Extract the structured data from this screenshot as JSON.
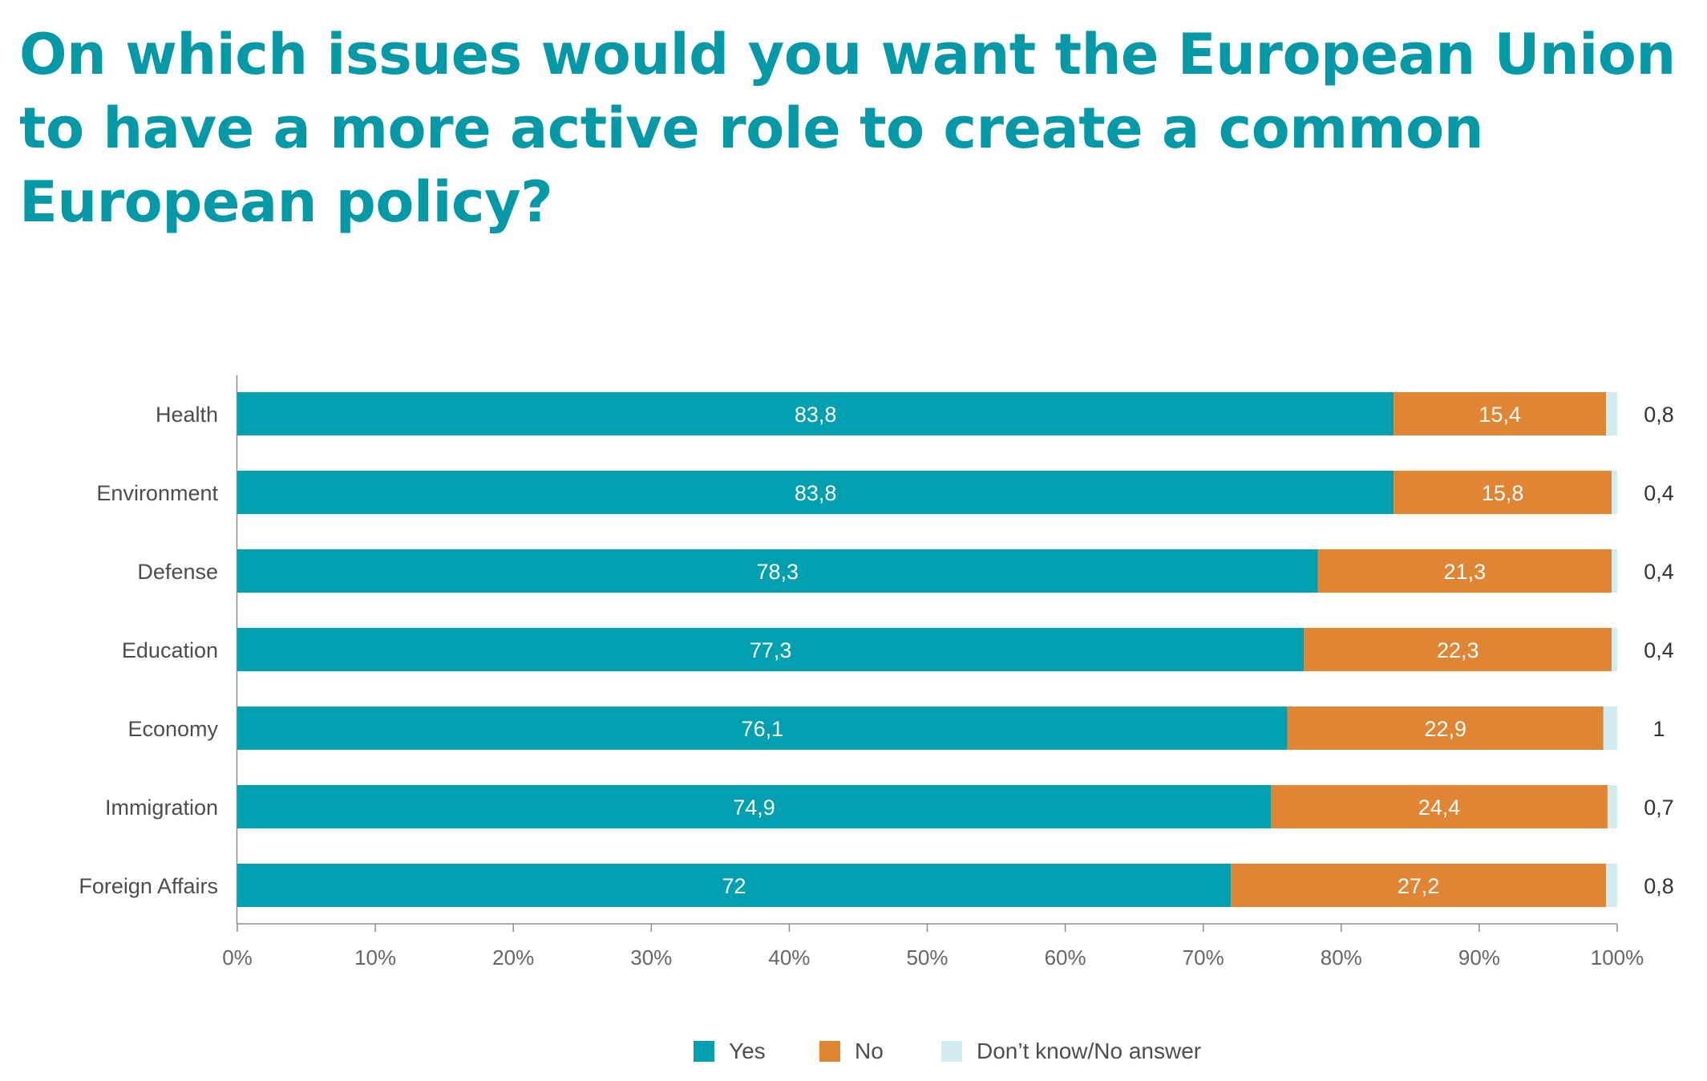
{
  "title": "On which issues would you want the European Union to have a more active role to create a common European policy?",
  "colors": {
    "yes": "#029fb0",
    "no": "#e08533",
    "dk": "#d3ecf1",
    "title": "#0599a8",
    "axis": "#8c8c8c",
    "text": "#4d4d4d"
  },
  "legend": {
    "yes": "Yes",
    "no": "No",
    "dk": "Don’t know/No answer"
  },
  "chart_data": {
    "type": "bar",
    "orientation": "horizontal",
    "stacked": true,
    "categories": [
      "Health",
      "Environment",
      "Defense",
      "Education",
      "Economy",
      "Immigration",
      "Foreign Affairs"
    ],
    "series": [
      {
        "name": "Yes",
        "values": [
          83.8,
          83.8,
          78.3,
          77.3,
          76.1,
          74.9,
          72
        ],
        "labels": [
          "83,8",
          "83,8",
          "78,3",
          "77,3",
          "76,1",
          "74,9",
          "72"
        ]
      },
      {
        "name": "No",
        "values": [
          15.4,
          15.8,
          21.3,
          22.3,
          22.9,
          24.4,
          27.2
        ],
        "labels": [
          "15,4",
          "15,8",
          "21,3",
          "22,3",
          "22,9",
          "24,4",
          "27,2"
        ]
      },
      {
        "name": "Don’t know/No answer",
        "values": [
          0.8,
          0.4,
          0.4,
          0.4,
          1,
          0.7,
          0.8
        ],
        "labels": [
          "0,8",
          "0,4",
          "0,4",
          "0,4",
          "1",
          "0,7",
          "0,8"
        ]
      }
    ],
    "xlim": [
      0,
      100
    ],
    "xticks": [
      "0%",
      "10%",
      "20%",
      "30%",
      "40%",
      "50%",
      "60%",
      "70%",
      "80%",
      "90%",
      "100%"
    ],
    "grid": false,
    "legend_position": "bottom-center"
  }
}
